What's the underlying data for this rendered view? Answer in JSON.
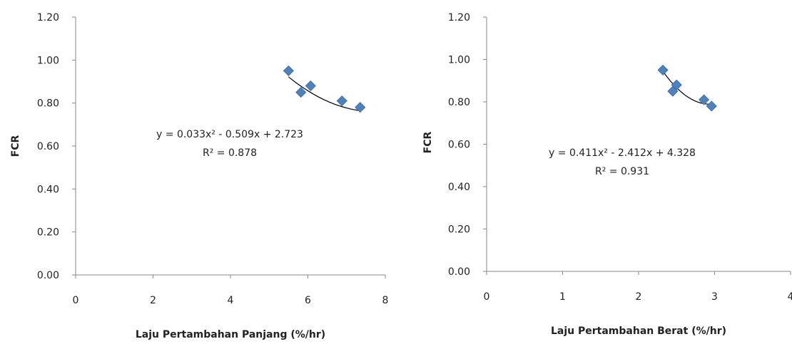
{
  "charts": {
    "left": {
      "equation": "y = 0.033x² - 0.509x + 2.723",
      "r2": "R² = 0.878"
    },
    "right": {
      "equation": "y = 0.411x² - 2.412x + 4.328",
      "r2": "R² = 0.931"
    }
  },
  "chart_data": [
    {
      "type": "scatter",
      "xlabel": "Laju Pertambahan Panjang (%/hr)",
      "ylabel": "FCR",
      "xlim": [
        0,
        8
      ],
      "ylim": [
        0,
        1.2
      ],
      "xticks": [
        "0",
        "2",
        "4",
        "6",
        "8"
      ],
      "yticks": [
        "0.00",
        "0.20",
        "0.40",
        "0.60",
        "0.80",
        "1.00",
        "1.20"
      ],
      "grid": false,
      "marker_color": "#4F81BD",
      "points": [
        {
          "x": 5.5,
          "y": 0.95
        },
        {
          "x": 5.82,
          "y": 0.85
        },
        {
          "x": 6.07,
          "y": 0.88
        },
        {
          "x": 6.88,
          "y": 0.81
        },
        {
          "x": 7.35,
          "y": 0.78
        }
      ],
      "trendline": {
        "type": "polynomial",
        "coefficients": [
          0.033,
          -0.509,
          2.723
        ],
        "x_range": [
          5.5,
          7.35
        ]
      }
    },
    {
      "type": "scatter",
      "xlabel": "Laju Pertambahan Berat (%/hr)",
      "ylabel": "FCR",
      "xlim": [
        0,
        4
      ],
      "ylim": [
        0,
        1.2
      ],
      "xticks": [
        "0",
        "1",
        "2",
        "3",
        "4"
      ],
      "yticks": [
        "0.00",
        "0.20",
        "0.40",
        "0.60",
        "0.80",
        "1.00",
        "1.20"
      ],
      "grid": false,
      "marker_color": "#4F81BD",
      "points": [
        {
          "x": 2.32,
          "y": 0.95
        },
        {
          "x": 2.45,
          "y": 0.85
        },
        {
          "x": 2.5,
          "y": 0.88
        },
        {
          "x": 2.86,
          "y": 0.81
        },
        {
          "x": 2.96,
          "y": 0.78
        }
      ],
      "trendline": {
        "type": "polynomial",
        "coefficients": [
          0.411,
          -2.412,
          4.328
        ],
        "x_range": [
          2.32,
          2.96
        ]
      }
    }
  ]
}
